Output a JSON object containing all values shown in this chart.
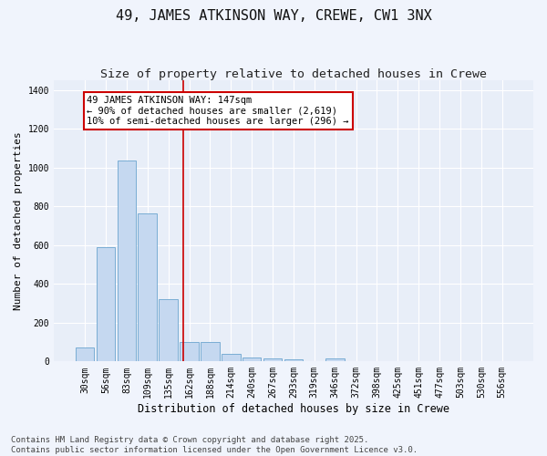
{
  "title": "49, JAMES ATKINSON WAY, CREWE, CW1 3NX",
  "subtitle": "Size of property relative to detached houses in Crewe",
  "xlabel": "Distribution of detached houses by size in Crewe",
  "ylabel": "Number of detached properties",
  "bar_color": "#c5d8f0",
  "bar_edge_color": "#7aadd4",
  "background_color": "#f0f4fc",
  "plot_bg_color": "#e8eef8",
  "grid_color": "#ffffff",
  "categories": [
    "30sqm",
    "56sqm",
    "83sqm",
    "109sqm",
    "135sqm",
    "162sqm",
    "188sqm",
    "214sqm",
    "240sqm",
    "267sqm",
    "293sqm",
    "319sqm",
    "346sqm",
    "372sqm",
    "398sqm",
    "425sqm",
    "451sqm",
    "477sqm",
    "503sqm",
    "530sqm",
    "556sqm"
  ],
  "values": [
    70,
    590,
    1035,
    765,
    320,
    100,
    100,
    40,
    20,
    15,
    10,
    0,
    18,
    0,
    0,
    0,
    0,
    0,
    0,
    0,
    0
  ],
  "vline_index": 4.72,
  "vline_color": "#cc0000",
  "annotation_text": "49 JAMES ATKINSON WAY: 147sqm\n← 90% of detached houses are smaller (2,619)\n10% of semi-detached houses are larger (296) →",
  "annotation_box_color": "#ffffff",
  "annotation_box_edge_color": "#cc0000",
  "ylim": [
    0,
    1450
  ],
  "yticks": [
    0,
    200,
    400,
    600,
    800,
    1000,
    1200,
    1400
  ],
  "footnote": "Contains HM Land Registry data © Crown copyright and database right 2025.\nContains public sector information licensed under the Open Government Licence v3.0.",
  "title_fontsize": 11,
  "subtitle_fontsize": 9.5,
  "annotation_fontsize": 7.5,
  "footnote_fontsize": 6.5,
  "ylabel_fontsize": 8,
  "xlabel_fontsize": 8.5,
  "tick_fontsize": 7
}
